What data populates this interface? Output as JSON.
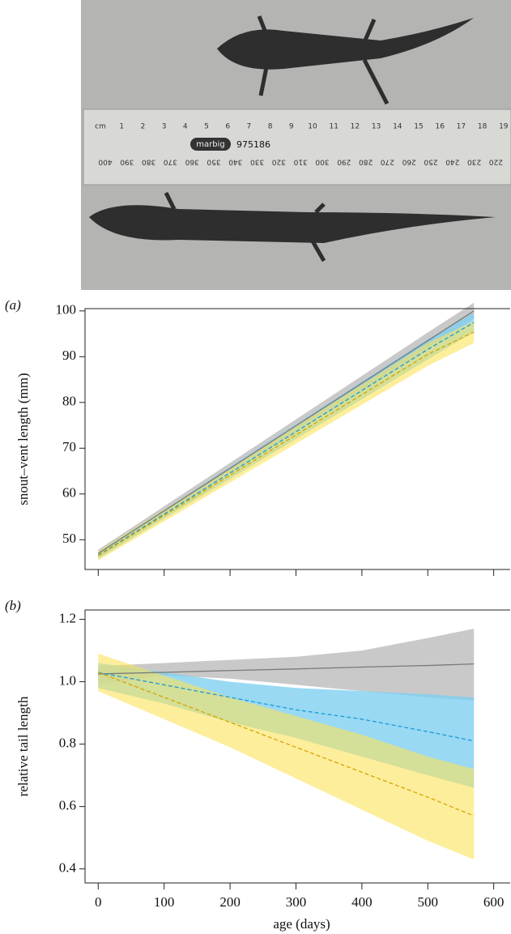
{
  "photo": {
    "brand": "marbig",
    "code": "975186",
    "cm_labels": [
      "cm",
      "1",
      "2",
      "3",
      "4",
      "5",
      "6",
      "7",
      "8",
      "9",
      "10",
      "11",
      "12",
      "13",
      "14",
      "15",
      "16",
      "17",
      "18",
      "19"
    ],
    "mm_labels": [
      "400",
      "390",
      "380",
      "370",
      "360",
      "350",
      "340",
      "330",
      "320",
      "310",
      "300",
      "290",
      "280",
      "270",
      "260",
      "250",
      "240",
      "230",
      "220"
    ]
  },
  "chart_data": [
    {
      "type": "line",
      "panel_label": "(a)",
      "y_label": "snout–vent length (mm)",
      "x": [
        0,
        100,
        200,
        300,
        400,
        500,
        570
      ],
      "xlim": [
        -20,
        625
      ],
      "xticks": [
        0,
        100,
        200,
        300,
        400,
        500,
        600
      ],
      "xtick_labels": false,
      "ylim": [
        43.5,
        100.5
      ],
      "yticks": [
        50,
        60,
        70,
        80,
        90,
        100
      ],
      "series": [
        {
          "color": "#7a7a7a",
          "band_color": "#c9c9c9",
          "opacity": 1,
          "dash": false,
          "values": [
            47,
            56.3,
            65.6,
            74.9,
            84.2,
            93.5,
            100
          ],
          "lower": [
            46.2,
            55.3,
            64.4,
            73.5,
            82.6,
            91.7,
            98.3
          ],
          "upper": [
            47.8,
            57.3,
            66.8,
            76.3,
            85.8,
            95.3,
            101.8
          ]
        },
        {
          "color": "#1b9ad6",
          "band_color": "#7fd0f0",
          "opacity": 0.8,
          "dash": true,
          "values": [
            46.6,
            55.6,
            64.6,
            73.6,
            82.6,
            91.6,
            97.5
          ],
          "lower": [
            45.8,
            54.6,
            63.3,
            72.0,
            80.7,
            89.4,
            95.4
          ],
          "upper": [
            47.4,
            56.6,
            65.9,
            75.2,
            84.5,
            93.8,
            99.6
          ]
        },
        {
          "color": "#d4a500",
          "band_color": "#fce35a",
          "opacity": 0.6,
          "dash": true,
          "values": [
            46.5,
            55.3,
            64.1,
            72.9,
            81.7,
            90.5,
            95.4
          ],
          "lower": [
            45.5,
            54.0,
            62.5,
            71.0,
            79.5,
            88.0,
            93.0
          ],
          "upper": [
            47.5,
            56.6,
            65.7,
            74.8,
            83.9,
            93.0,
            97.8
          ]
        }
      ]
    },
    {
      "type": "line",
      "panel_label": "(b)",
      "y_label": "relative tail length",
      "x_label": "age (days)",
      "x": [
        0,
        100,
        200,
        300,
        400,
        500,
        570
      ],
      "xlim": [
        -20,
        625
      ],
      "xticks": [
        0,
        100,
        200,
        300,
        400,
        500,
        600
      ],
      "xtick_labels": true,
      "ylim": [
        0.355,
        1.23
      ],
      "yticks": [
        0.4,
        0.6,
        0.8,
        {
          "value": 1,
          "label": "1.0"
        },
        1.2
      ],
      "series": [
        {
          "color": "#7a7a7a",
          "band_color": "#c9c9c9",
          "opacity": 1,
          "dash": false,
          "values": [
            1.025,
            1.03,
            1.036,
            1.041,
            1.047,
            1.052,
            1.057
          ],
          "lower": [
            0.99,
            1.02,
            1.01,
            0.99,
            0.97,
            0.95,
            0.94
          ],
          "upper": [
            1.05,
            1.06,
            1.07,
            1.08,
            1.1,
            1.14,
            1.17
          ]
        },
        {
          "color": "#1b9ad6",
          "band_color": "#7fd0f0",
          "opacity": 0.8,
          "dash": true,
          "values": [
            1.03,
            0.99,
            0.95,
            0.91,
            0.88,
            0.84,
            0.81
          ],
          "lower": [
            0.98,
            0.93,
            0.87,
            0.82,
            0.76,
            0.7,
            0.66
          ],
          "upper": [
            1.06,
            1.03,
            1.0,
            0.98,
            0.97,
            0.96,
            0.95
          ]
        },
        {
          "color": "#d4a500",
          "band_color": "#fce35a",
          "opacity": 0.6,
          "dash": true,
          "values": [
            1.03,
            0.95,
            0.87,
            0.79,
            0.71,
            0.63,
            0.57
          ],
          "lower": [
            0.97,
            0.88,
            0.79,
            0.69,
            0.59,
            0.49,
            0.43
          ],
          "upper": [
            1.09,
            1.02,
            0.95,
            0.89,
            0.83,
            0.76,
            0.72
          ]
        }
      ]
    }
  ]
}
